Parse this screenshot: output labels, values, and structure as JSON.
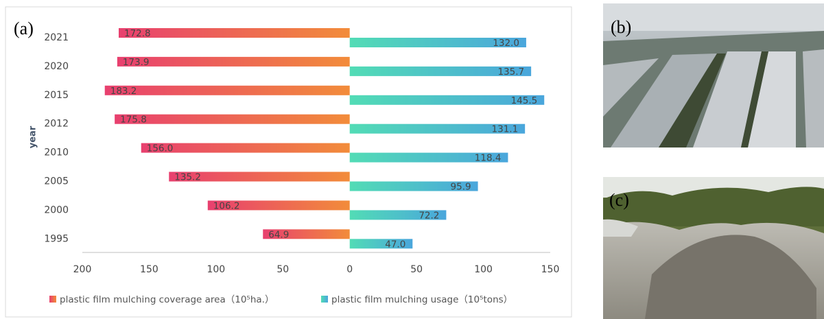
{
  "chart_data": {
    "type": "diverging-bar",
    "panel_labels": [
      "(a)",
      "(b)",
      "(c)"
    ],
    "y_label": "year",
    "categories": [
      "2021",
      "2020",
      "2015",
      "2012",
      "2010",
      "2005",
      "2000",
      "1995"
    ],
    "series": [
      {
        "name": "plastic film mulching coverage area（10⁵ha.）",
        "color": [
          "#e8406f",
          "#f28c3a"
        ],
        "values": [
          172.8,
          173.9,
          183.2,
          175.8,
          156.0,
          135.2,
          106.2,
          64.9
        ],
        "value_labels": [
          "172.8",
          "173.9",
          "183.2",
          "175.8",
          "156.0",
          "135.2",
          "106.2",
          "64.9"
        ]
      },
      {
        "name": "plastic film mulching usage（10⁵tons）",
        "color": [
          "#52dcb5",
          "#4aa6dc"
        ],
        "values": [
          132.0,
          135.7,
          145.5,
          131.1,
          118.4,
          95.9,
          72.2,
          47.0
        ],
        "value_labels": [
          "132.0",
          "135.7",
          "145.5",
          "131.1",
          "118.4",
          "95.9",
          "72.2",
          "47.0"
        ]
      }
    ],
    "xlim": [
      -200,
      150
    ],
    "xticks": [
      {
        "value": -200,
        "label": "200"
      },
      {
        "value": -150,
        "label": "150"
      },
      {
        "value": -100,
        "label": "100"
      },
      {
        "value": -50,
        "label": "50"
      },
      0,
      50,
      100,
      150
    ]
  }
}
